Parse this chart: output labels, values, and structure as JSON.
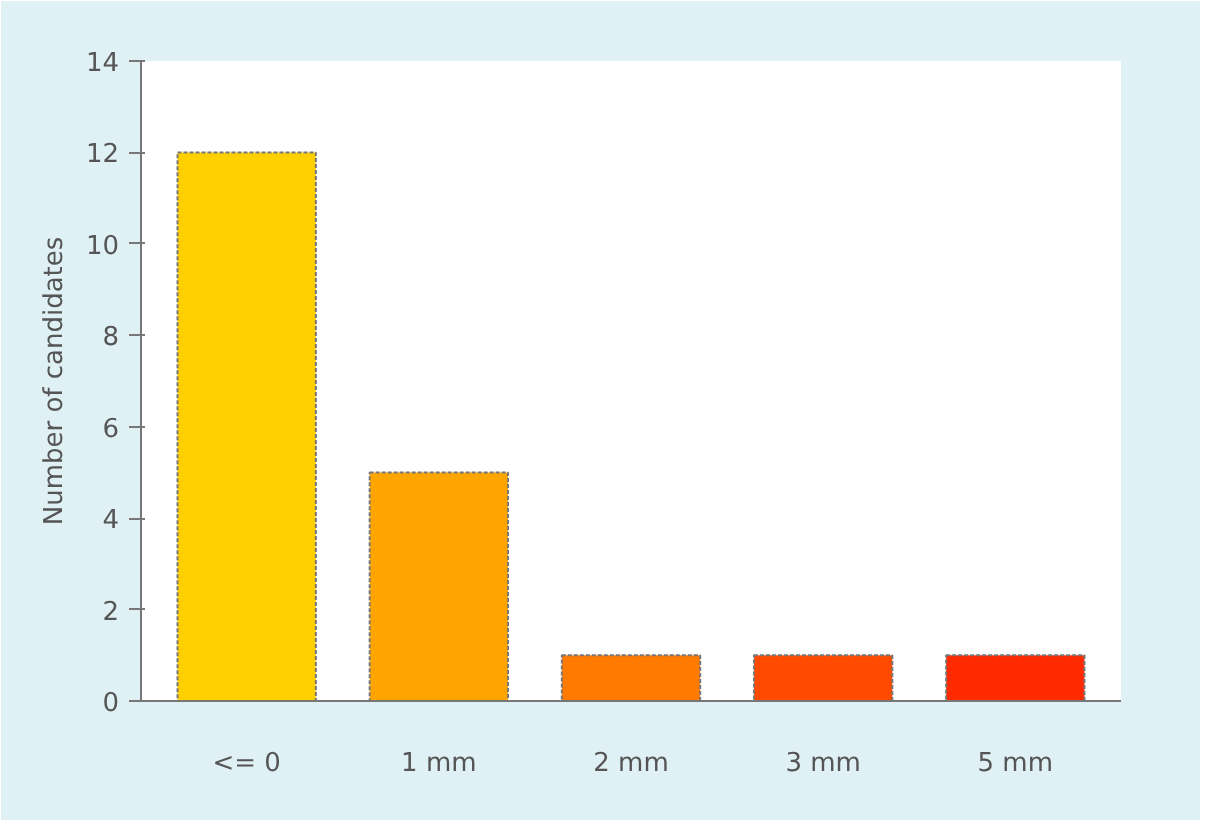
{
  "chart_data": {
    "type": "bar",
    "ylabel": "Number of candidates",
    "categories": [
      "<= 0",
      "1 mm",
      "2 mm",
      "3 mm",
      "5 mm"
    ],
    "values": [
      12,
      5,
      1,
      1,
      1
    ],
    "colors": [
      "#ffd000",
      "#ffa500",
      "#ff7a00",
      "#ff4a00",
      "#ff2a00"
    ],
    "ylim": [
      0,
      14
    ],
    "yticks": [
      0,
      2,
      4,
      6,
      8,
      10,
      12,
      14
    ],
    "grid": false
  }
}
